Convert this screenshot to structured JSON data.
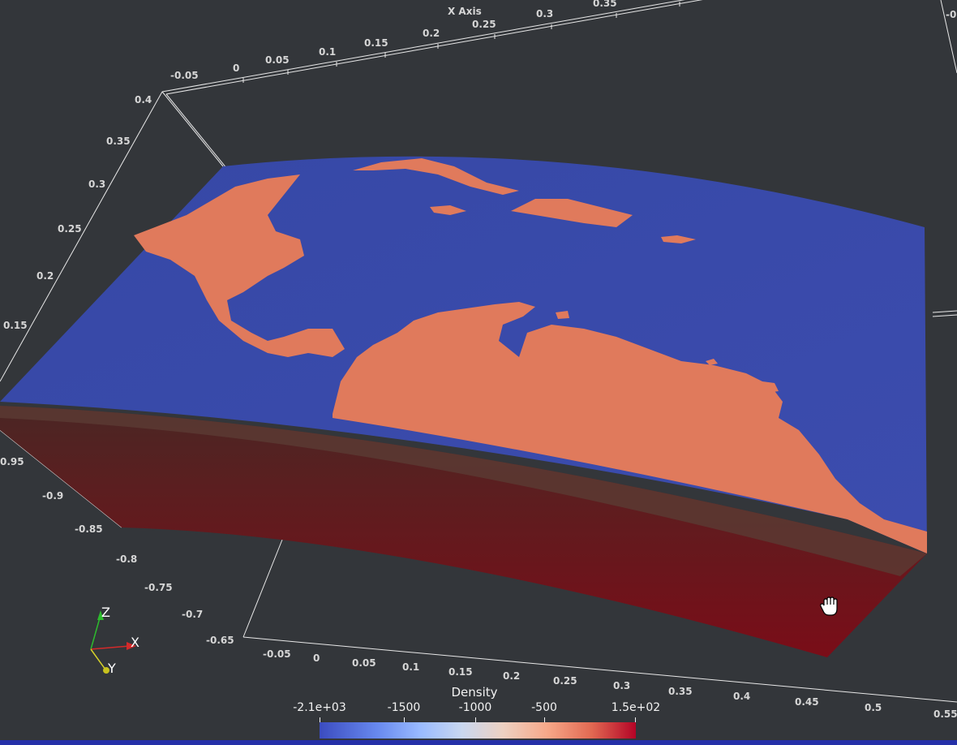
{
  "viewport": {
    "x_axis_title": "X Axis",
    "top_x_ticks": [
      "-0.05",
      "0",
      "0.05",
      "0.1",
      "0.15",
      "0.2",
      "0.25",
      "0.3",
      "0.35"
    ],
    "left_z_ticks": [
      "0.4",
      "0.35",
      "0.3",
      "0.25",
      "0.2",
      "0.15"
    ],
    "left_y_ticks": [
      "0.95",
      "-0.9",
      "-0.85",
      "-0.8",
      "-0.75",
      "-0.7",
      "-0.65"
    ],
    "bottom_x_ticks": [
      "-0.05",
      "0",
      "0.05",
      "0.1",
      "0.15",
      "0.2",
      "0.25",
      "0.3",
      "0.35",
      "0.4",
      "0.45",
      "0.5",
      "0.55"
    ],
    "corner_tick": "-0"
  },
  "orientation_axes": {
    "x_label": "X",
    "y_label": "Y",
    "z_label": "Z"
  },
  "colorbar": {
    "title": "Density",
    "labels": [
      "-2.1e+03",
      "-1500",
      "-1000",
      "-500",
      "1.5e+02"
    ],
    "min_color": "#3b4cc0",
    "max_color": "#b40426"
  },
  "colors": {
    "background": "#33363a",
    "ocean": "#3a49a8",
    "land": "#e07a5c",
    "crust": "#5a1a1d"
  },
  "cursor": {
    "icon": "hand-grab-icon"
  }
}
